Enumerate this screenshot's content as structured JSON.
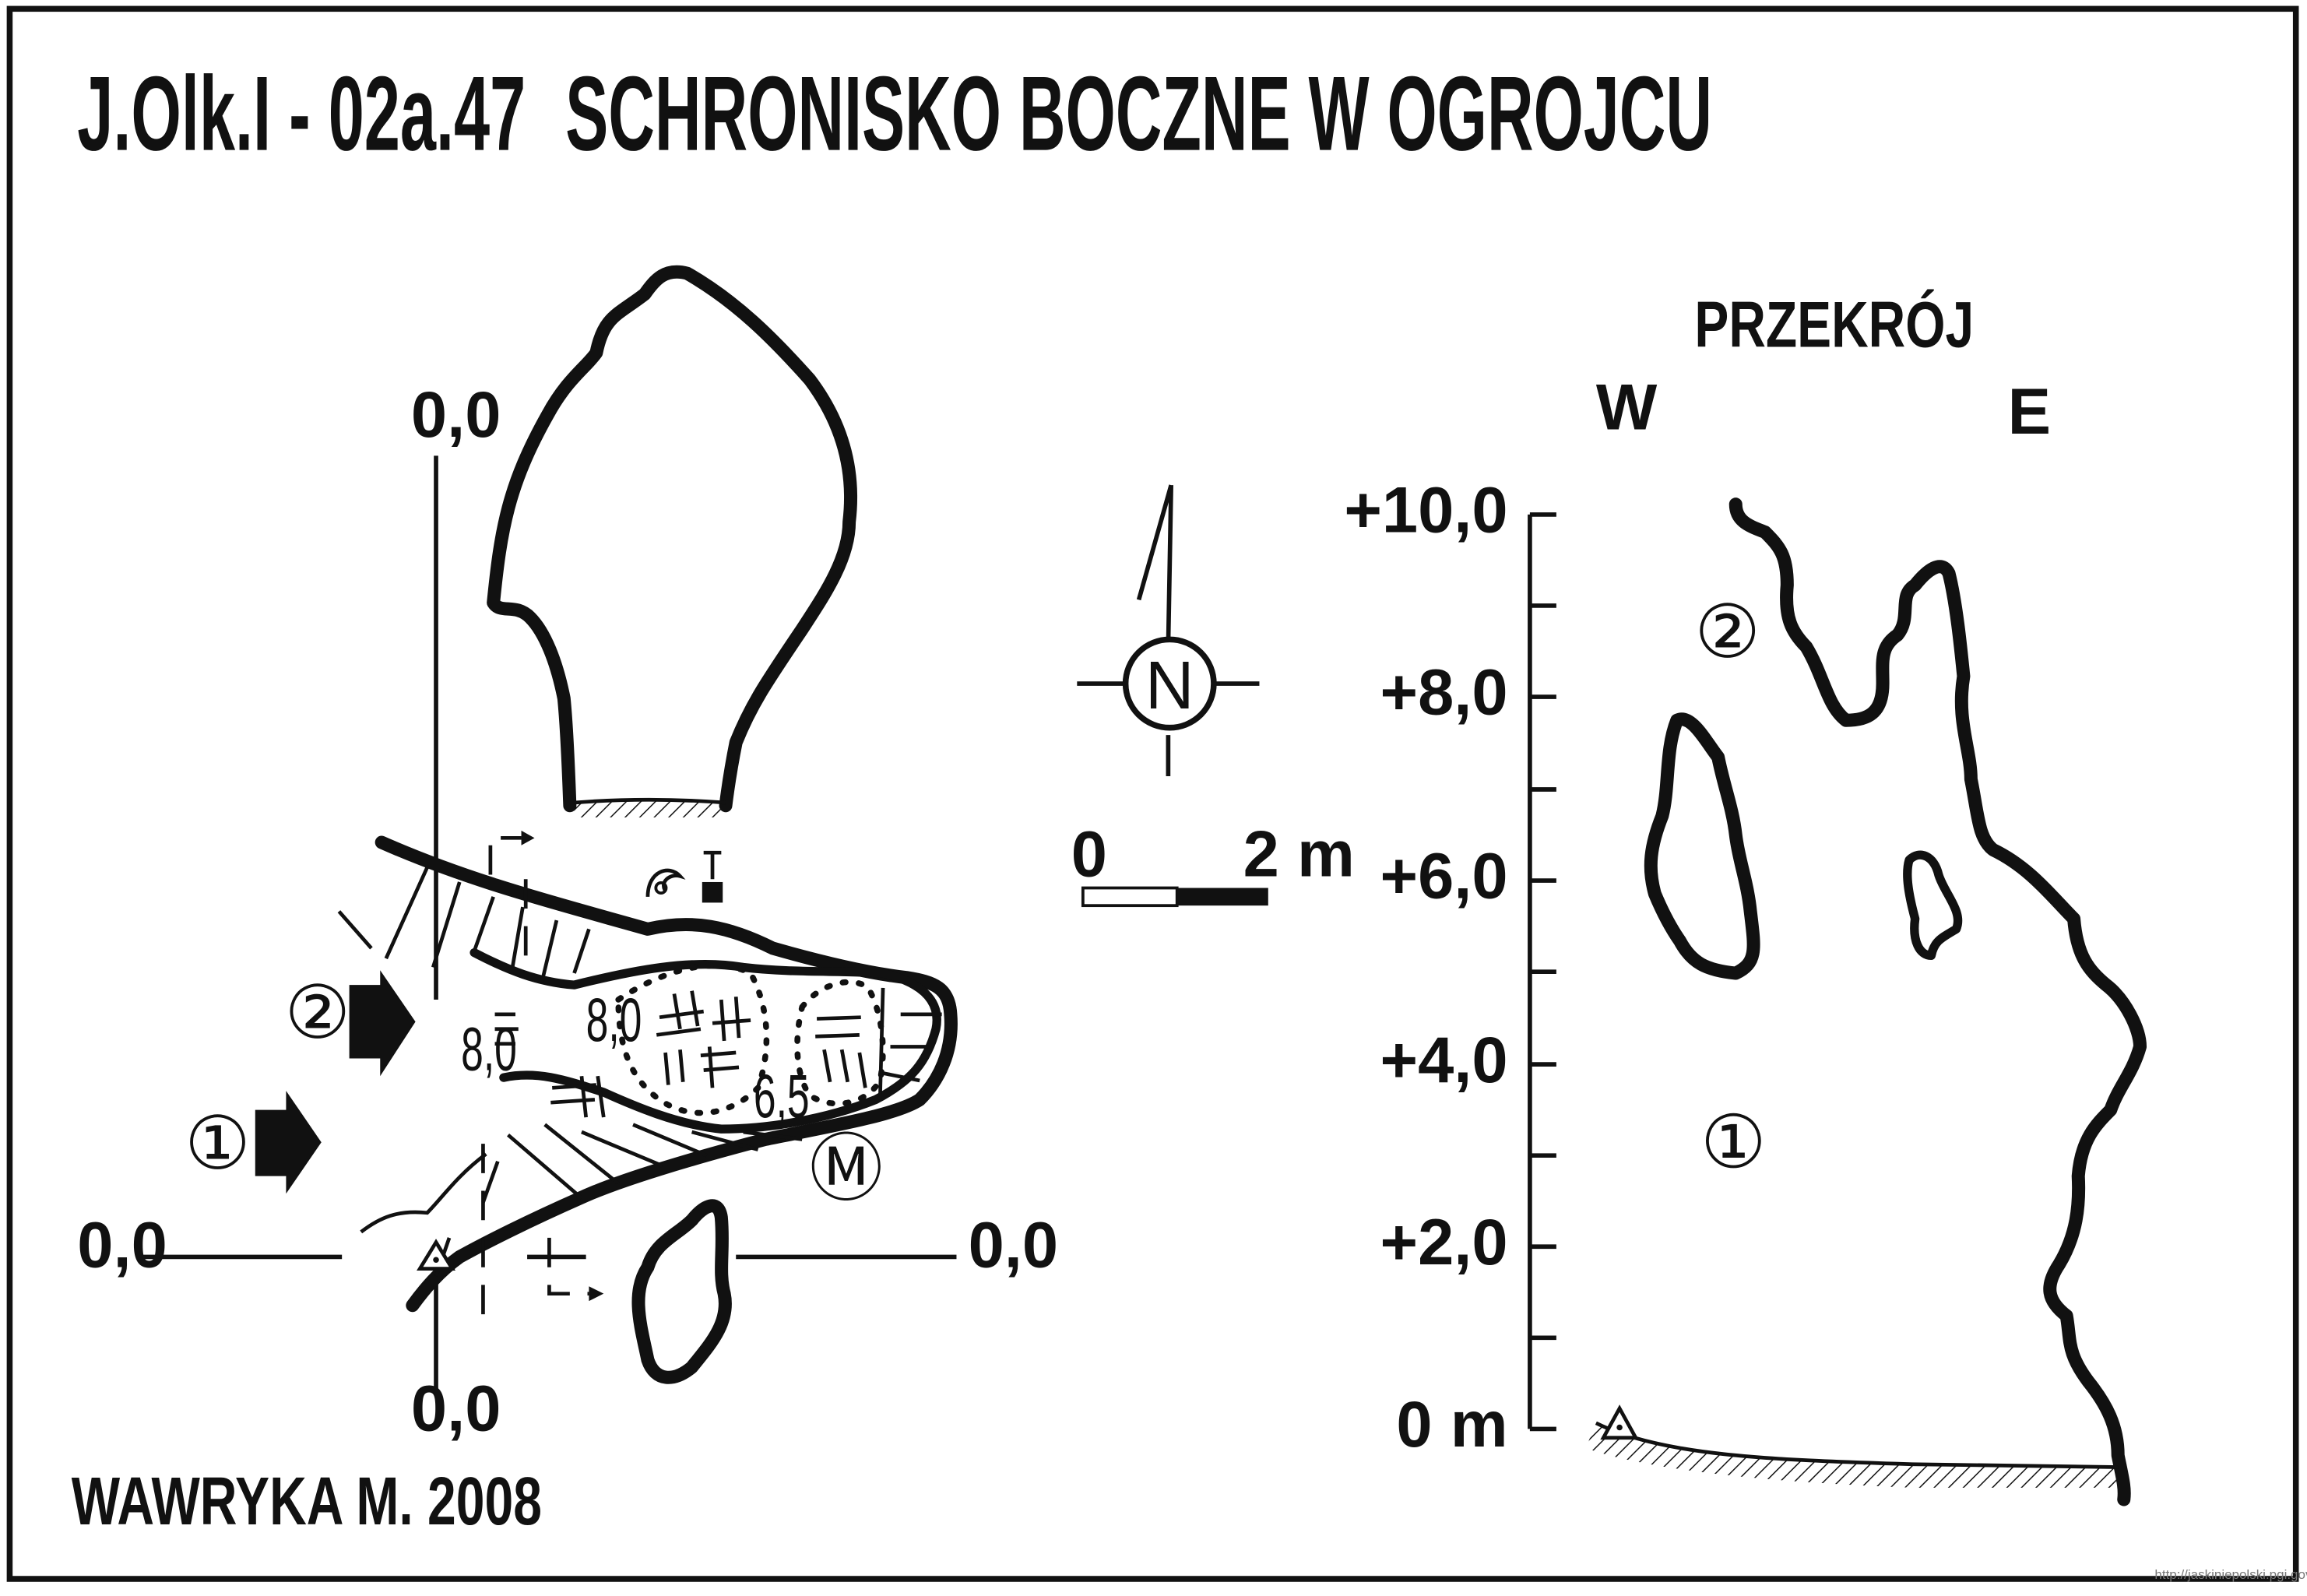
{
  "title": {
    "code": "J.Olk.I - 02a.47",
    "name": "SCHRONISKO BOCZNE W OGROJCU"
  },
  "author": "WAWRYKA M. 2008",
  "watermark": "http://jaskiniepolski.pgi.gov.pl",
  "plan": {
    "grid_labels": {
      "top": "0,0",
      "bottom": "0,0",
      "left": "0,0",
      "right": "0,0"
    },
    "entrances": [
      "①",
      "②"
    ],
    "heights": {
      "h1": "8,0",
      "h2": "8,0",
      "h3": "6,5"
    },
    "marker_m": "Ⓜ",
    "north_label": "N",
    "scale": {
      "start": "0",
      "end": "2 m"
    }
  },
  "section": {
    "title": "PRZEKRÓJ",
    "west": "W",
    "east": "E",
    "ticks": [
      "+10,0",
      "+8,0",
      "+6,0",
      "+4,0",
      "+2,0",
      "0 m"
    ],
    "levels": [
      "①",
      "②"
    ]
  }
}
